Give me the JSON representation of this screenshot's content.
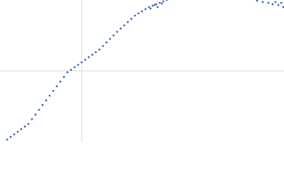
{
  "chart_data": {
    "type": "scatter",
    "color": "#3d68b2",
    "grid": true,
    "xlim": [
      0,
      400
    ],
    "ylim": [
      0,
      200
    ],
    "xticks": [
      115
    ],
    "yticks": [
      100
    ],
    "x": [
      10,
      15,
      20,
      25,
      30,
      35,
      40,
      45,
      50,
      55,
      60,
      65,
      70,
      75,
      80,
      85,
      90,
      95,
      100,
      105,
      110,
      115,
      120,
      125,
      130,
      135,
      140,
      145,
      150,
      155,
      160,
      165,
      170,
      175,
      180,
      185,
      190,
      195,
      200,
      205,
      210,
      212,
      215,
      218,
      220,
      222,
      225,
      228,
      230,
      235,
      362,
      370,
      378,
      384,
      388,
      392,
      396,
      399
    ],
    "y": [
      3,
      6.7,
      10.3,
      14,
      17.7,
      21.3,
      25,
      31.7,
      38.3,
      45,
      51.7,
      58.3,
      65,
      71.6,
      78.2,
      84.8,
      91.4,
      98,
      101.5,
      105,
      108.5,
      112,
      115.6,
      119.2,
      122.8,
      126.4,
      130,
      135,
      140,
      145,
      150,
      155,
      159.6,
      164.2,
      168.8,
      173.4,
      178,
      181,
      184,
      187,
      190,
      188,
      192,
      193,
      194,
      190,
      196,
      195,
      198,
      200,
      199,
      197,
      196,
      194,
      197,
      193,
      196,
      190
    ]
  }
}
